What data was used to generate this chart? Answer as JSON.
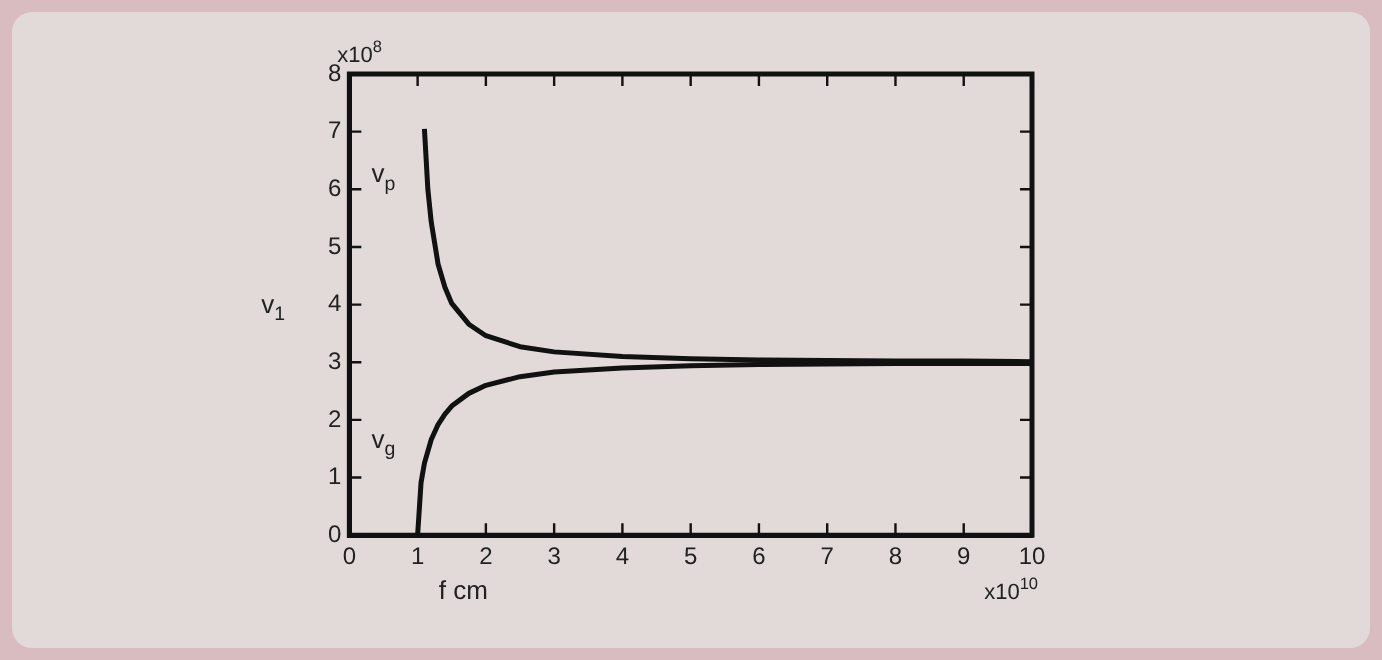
{
  "chart_data": {
    "type": "line",
    "xlabel": "f cm",
    "ylabel": "v$_{1}$",
    "xlim": [
      0,
      10
    ],
    "ylim": [
      0,
      8
    ],
    "xticks": [
      0,
      1,
      2,
      3,
      4,
      5,
      6,
      7,
      8,
      9,
      10
    ],
    "yticks": [
      0,
      1,
      2,
      3,
      4,
      5,
      6,
      7,
      8
    ],
    "grid": false,
    "legend": false,
    "marker": "none",
    "line_style": "solid",
    "annotations": [
      "x10$^{8}$",
      "x10$^{10}$"
    ],
    "series": [
      {
        "name": "v$_{p}$",
        "color": "#111111",
        "x": [
          1.1,
          1.15,
          1.2,
          1.3,
          1.4,
          1.5,
          1.75,
          2,
          2.5,
          3,
          4,
          5,
          6,
          7,
          8,
          9,
          10
        ],
        "values": [
          7.05,
          6.0,
          5.43,
          4.7,
          4.3,
          4.02,
          3.66,
          3.46,
          3.27,
          3.18,
          3.1,
          3.06,
          3.04,
          3.03,
          3.02,
          3.02,
          3.01
        ]
      },
      {
        "name": "v$_{g}$",
        "color": "#111111",
        "x": [
          1.0,
          1.05,
          1.1,
          1.2,
          1.3,
          1.4,
          1.5,
          1.75,
          2,
          2.5,
          3,
          4,
          5,
          6,
          7,
          8,
          9,
          10
        ],
        "values": [
          0,
          0.91,
          1.25,
          1.66,
          1.92,
          2.1,
          2.24,
          2.46,
          2.6,
          2.75,
          2.83,
          2.9,
          2.94,
          2.96,
          2.97,
          2.98,
          2.98,
          2.98
        ]
      }
    ]
  }
}
